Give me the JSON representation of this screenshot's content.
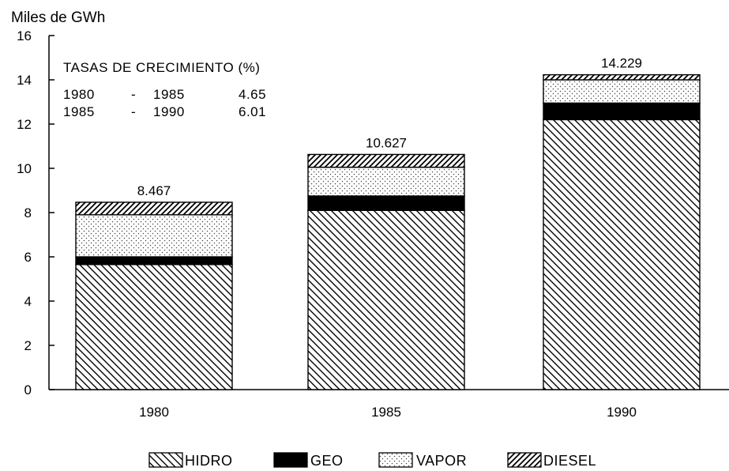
{
  "chart_data": {
    "type": "bar",
    "stacked": true,
    "ylabel": "Miles de GWh",
    "ylim": [
      0,
      16
    ],
    "yticks": [
      0,
      2,
      4,
      6,
      8,
      10,
      12,
      14,
      16
    ],
    "categories": [
      "1980",
      "1985",
      "1990"
    ],
    "totals": [
      "8.467",
      "10.627",
      "14.229"
    ],
    "series": [
      {
        "name": "HIDRO",
        "pattern": "backslash-hatch",
        "values": [
          5.65,
          8.1,
          12.2
        ]
      },
      {
        "name": "GEO",
        "pattern": "solid-black",
        "values": [
          0.35,
          0.65,
          0.75
        ]
      },
      {
        "name": "VAPOR",
        "pattern": "dotted",
        "values": [
          1.9,
          1.3,
          1.05
        ]
      },
      {
        "name": "DIESEL",
        "pattern": "slash-hatch",
        "values": [
          0.567,
          0.577,
          0.229
        ]
      }
    ],
    "annotation": {
      "title": "TASAS DE CRECIMIENTO (%)",
      "rows": [
        {
          "period_start": "1980",
          "dash": "-",
          "period_end": "1985",
          "rate": "4.65"
        },
        {
          "period_start": "1985",
          "dash": "-",
          "period_end": "1990",
          "rate": "6.01"
        }
      ]
    },
    "legend_position": "bottom-center",
    "grid": false
  }
}
